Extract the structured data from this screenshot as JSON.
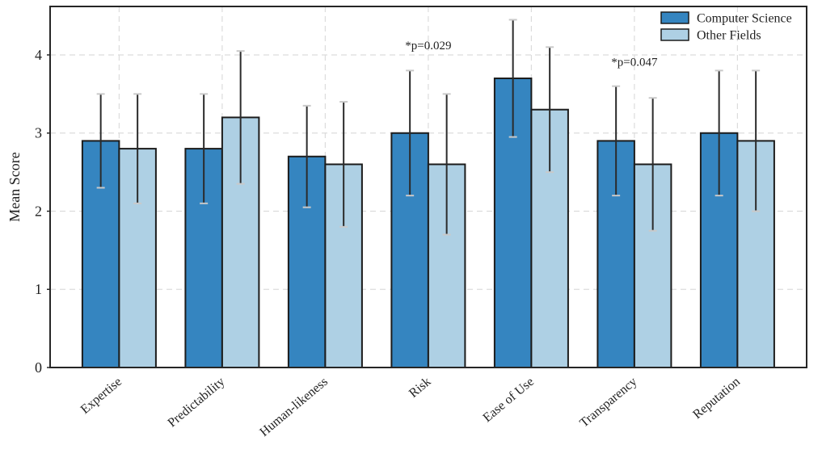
{
  "figure": {
    "background": "#ffffff",
    "spine_color": "#262626",
    "grid_color": "#dcdcdc",
    "text_color": "#1f1f1f"
  },
  "chart_data": {
    "type": "bar",
    "title": "",
    "xlabel": "",
    "ylabel": "Mean Score",
    "ylim": [
      0,
      4.62
    ],
    "yticks": [
      0,
      1,
      2,
      3,
      4
    ],
    "grid": "dashed horizontal lines at yticks, dashed vertical lines at each category center, drawn behind bars",
    "legend_position": "upper right, no frame",
    "categories": [
      "Expertise",
      "Predictability",
      "Human-likeness",
      "Risk",
      "Ease of Use",
      "Transparency",
      "Reputation"
    ],
    "series": [
      {
        "name": "Computer Science",
        "color": "#3585c0",
        "values": [
          2.9,
          2.8,
          2.7,
          3.0,
          3.7,
          2.9,
          3.0
        ],
        "errors": [
          0.6,
          0.7,
          0.65,
          0.8,
          0.75,
          0.7,
          0.8
        ]
      },
      {
        "name": "Other Fields",
        "color": "#aed0e4",
        "values": [
          2.8,
          3.2,
          2.6,
          2.6,
          3.3,
          2.6,
          2.9
        ],
        "errors": [
          0.7,
          0.85,
          0.8,
          0.9,
          0.8,
          0.85,
          0.9
        ]
      }
    ],
    "annotations": [
      {
        "text": "*p=0.029",
        "category": "Risk",
        "y": 4.07
      },
      {
        "text": "*p=0.047",
        "category": "Transparency",
        "y": 3.86
      }
    ],
    "bar_edge_color": "#1c1c1c",
    "error_bar_color": "#2b2b2b",
    "error_cap_color": "#c9c9c9"
  }
}
